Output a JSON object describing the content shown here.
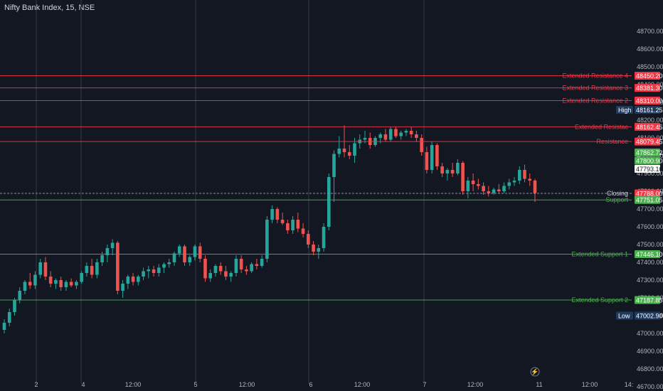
{
  "title": "Nifty Bank Index, 15, NSE",
  "colors": {
    "background": "#131722",
    "up": "#26a69a",
    "down": "#ef5350",
    "resistance": "#f23645",
    "support": "#4caf50",
    "grid": "#787b86",
    "text": "#b2b5be"
  },
  "chart_data": {
    "type": "candlestick",
    "ylim": [
      46650,
      48800
    ],
    "y_ticks": [
      46700,
      46800,
      46900,
      47000,
      47100,
      47200,
      47300,
      47400,
      47500,
      47600,
      47700,
      47800,
      47900,
      48000,
      48100,
      48200,
      48300,
      48400,
      48500,
      48600,
      48700
    ],
    "x_ticks": [
      "2",
      "4",
      "12:00",
      "5",
      "12:00",
      "6",
      "12:00",
      "7",
      "12:00",
      "11",
      "12:00",
      "14:"
    ],
    "levels": [
      {
        "label": "Extended Resistance 4",
        "value": "48450.20",
        "kind": "resistance"
      },
      {
        "label": "Extended Resistance 3",
        "value": "48381.30",
        "kind": "resistance"
      },
      {
        "label": "Extended Resistance 2",
        "value": "48310.00",
        "kind": "resistance"
      },
      {
        "label": "Extended Resistance 1",
        "value": "48162.45",
        "kind": "resistance",
        "label_shown": "Extended Resistac"
      },
      {
        "label": "Resistance",
        "value": "48079.45",
        "kind": "resistance"
      },
      {
        "label": "Closing",
        "value": "47788.00",
        "kind": "closing"
      },
      {
        "label": "Support",
        "value": "47751.05",
        "kind": "support"
      },
      {
        "label": "Extended Support 1",
        "value": "47446.10",
        "kind": "support"
      },
      {
        "label": "Extended Support 2",
        "value": "47187.85",
        "kind": "support"
      }
    ],
    "axis_tags": [
      {
        "text": "48161.25",
        "label": "High"
      },
      {
        "text": "47862.72"
      },
      {
        "text": "47800.90"
      },
      {
        "text": "47793.10"
      },
      {
        "text": "47002.90",
        "label": "Low"
      }
    ],
    "candles": [
      [
        47020,
        47080,
        47000,
        47060
      ],
      [
        47060,
        47140,
        47040,
        47120
      ],
      [
        47120,
        47200,
        47100,
        47190
      ],
      [
        47190,
        47260,
        47170,
        47240
      ],
      [
        47240,
        47300,
        47220,
        47290
      ],
      [
        47290,
        47340,
        47250,
        47270
      ],
      [
        47270,
        47350,
        47250,
        47330
      ],
      [
        47330,
        47420,
        47310,
        47400
      ],
      [
        47400,
        47430,
        47300,
        47320
      ],
      [
        47320,
        47350,
        47260,
        47280
      ],
      [
        47280,
        47310,
        47250,
        47300
      ],
      [
        47300,
        47320,
        47240,
        47260
      ],
      [
        47260,
        47300,
        47240,
        47290
      ],
      [
        47290,
        47310,
        47260,
        47270
      ],
      [
        47270,
        47300,
        47250,
        47290
      ],
      [
        47290,
        47350,
        47280,
        47340
      ],
      [
        47340,
        47400,
        47320,
        47380
      ],
      [
        47380,
        47420,
        47310,
        47330
      ],
      [
        47330,
        47420,
        47310,
        47400
      ],
      [
        47400,
        47460,
        47380,
        47440
      ],
      [
        47440,
        47500,
        47400,
        47480
      ],
      [
        47480,
        47530,
        47440,
        47510
      ],
      [
        47510,
        47520,
        47220,
        47240
      ],
      [
        47240,
        47300,
        47200,
        47280
      ],
      [
        47280,
        47330,
        47250,
        47320
      ],
      [
        47320,
        47340,
        47270,
        47290
      ],
      [
        47290,
        47330,
        47270,
        47320
      ],
      [
        47320,
        47370,
        47300,
        47350
      ],
      [
        47350,
        47380,
        47310,
        47360
      ],
      [
        47360,
        47380,
        47320,
        47340
      ],
      [
        47340,
        47390,
        47320,
        47370
      ],
      [
        47370,
        47400,
        47340,
        47390
      ],
      [
        47390,
        47420,
        47370,
        47400
      ],
      [
        47400,
        47460,
        47380,
        47450
      ],
      [
        47450,
        47500,
        47430,
        47490
      ],
      [
        47490,
        47500,
        47380,
        47400
      ],
      [
        47400,
        47440,
        47380,
        47430
      ],
      [
        47430,
        47500,
        47410,
        47490
      ],
      [
        47490,
        47510,
        47400,
        47420
      ],
      [
        47420,
        47440,
        47290,
        47310
      ],
      [
        47310,
        47360,
        47290,
        47340
      ],
      [
        47340,
        47390,
        47320,
        47380
      ],
      [
        47380,
        47400,
        47330,
        47350
      ],
      [
        47350,
        47380,
        47300,
        47320
      ],
      [
        47320,
        47350,
        47290,
        47340
      ],
      [
        47340,
        47440,
        47320,
        47420
      ],
      [
        47420,
        47440,
        47340,
        47360
      ],
      [
        47360,
        47380,
        47330,
        47350
      ],
      [
        47350,
        47400,
        47340,
        47390
      ],
      [
        47390,
        47420,
        47360,
        47380
      ],
      [
        47380,
        47440,
        47370,
        47420
      ],
      [
        47420,
        47660,
        47400,
        47640
      ],
      [
        47640,
        47720,
        47620,
        47700
      ],
      [
        47700,
        47710,
        47620,
        47640
      ],
      [
        47640,
        47680,
        47610,
        47620
      ],
      [
        47620,
        47640,
        47560,
        47580
      ],
      [
        47580,
        47660,
        47560,
        47640
      ],
      [
        47640,
        47680,
        47570,
        47590
      ],
      [
        47590,
        47620,
        47540,
        47560
      ],
      [
        47560,
        47580,
        47480,
        47500
      ],
      [
        47500,
        47520,
        47440,
        47460
      ],
      [
        47460,
        47500,
        47420,
        47480
      ],
      [
        47480,
        47620,
        47460,
        47600
      ],
      [
        47600,
        47900,
        47580,
        47880
      ],
      [
        47880,
        48030,
        47740,
        48010
      ],
      [
        48010,
        48110,
        47990,
        48040
      ],
      [
        48040,
        48170,
        47990,
        48020
      ],
      [
        48020,
        48060,
        47980,
        48000
      ],
      [
        48000,
        48100,
        47960,
        48070
      ],
      [
        48070,
        48120,
        48040,
        48090
      ],
      [
        48090,
        48140,
        48070,
        48100
      ],
      [
        48100,
        48130,
        48040,
        48060
      ],
      [
        48060,
        48110,
        48050,
        48100
      ],
      [
        48100,
        48130,
        48070,
        48120
      ],
      [
        48120,
        48150,
        48080,
        48090
      ],
      [
        48090,
        48160,
        48080,
        48150
      ],
      [
        48150,
        48160,
        48100,
        48110
      ],
      [
        48110,
        48140,
        48090,
        48130
      ],
      [
        48130,
        48150,
        48110,
        48140
      ],
      [
        48140,
        48160,
        48100,
        48120
      ],
      [
        48120,
        48140,
        48080,
        48100
      ],
      [
        48100,
        48120,
        48000,
        48020
      ],
      [
        48020,
        48050,
        47900,
        47920
      ],
      [
        47920,
        48080,
        47900,
        48060
      ],
      [
        48060,
        48070,
        47920,
        47940
      ],
      [
        47940,
        47960,
        47880,
        47900
      ],
      [
        47900,
        47930,
        47860,
        47920
      ],
      [
        47920,
        47960,
        47880,
        47900
      ],
      [
        47900,
        47980,
        47890,
        47960
      ],
      [
        47960,
        47970,
        47780,
        47800
      ],
      [
        47800,
        47880,
        47760,
        47860
      ],
      [
        47860,
        47900,
        47800,
        47840
      ],
      [
        47840,
        47870,
        47810,
        47830
      ],
      [
        47830,
        47850,
        47780,
        47800
      ],
      [
        47800,
        47830,
        47770,
        47790
      ],
      [
        47790,
        47820,
        47780,
        47810
      ],
      [
        47810,
        47840,
        47790,
        47800
      ],
      [
        47800,
        47850,
        47790,
        47830
      ],
      [
        47830,
        47870,
        47810,
        47850
      ],
      [
        47850,
        47880,
        47830,
        47860
      ],
      [
        47860,
        47940,
        47840,
        47920
      ],
      [
        47920,
        47950,
        47850,
        47870
      ],
      [
        47870,
        47900,
        47830,
        47860
      ],
      [
        47860,
        47870,
        47740,
        47790
      ]
    ]
  }
}
